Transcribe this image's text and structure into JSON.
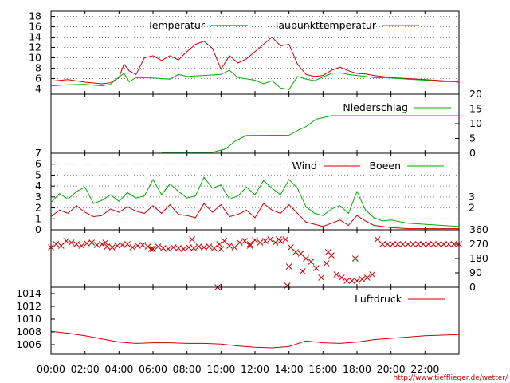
{
  "chart_data": [
    {
      "type": "line",
      "panel": "temperature",
      "ylim": [
        3,
        19
      ],
      "yticks": [
        4,
        6,
        8,
        10,
        12,
        14,
        16,
        18
      ],
      "grid": true,
      "legend_placement": "top",
      "series": [
        {
          "name": "Temperatur",
          "color": "#cc0000",
          "x": [
            0,
            1,
            2,
            3,
            3.5,
            4,
            4.3,
            4.6,
            5,
            5.5,
            6,
            6.5,
            7,
            7.5,
            8,
            8.5,
            9,
            9.5,
            10,
            10.5,
            11,
            11.5,
            12,
            12.5,
            13,
            13.5,
            14,
            14.5,
            15,
            15.5,
            16,
            16.5,
            17,
            17.5,
            18,
            18.5,
            19,
            20,
            21,
            22,
            23,
            24
          ],
          "values": [
            5.5,
            5.8,
            5.3,
            5,
            5.2,
            6.2,
            8.8,
            7.5,
            6.8,
            10,
            10.4,
            9.5,
            10.4,
            9.6,
            11.2,
            12.6,
            13.2,
            11.8,
            7.8,
            10.4,
            9,
            9.8,
            11.2,
            12.6,
            14,
            12.3,
            12.6,
            8.8,
            6.8,
            6.4,
            6.6,
            7.6,
            8.2,
            7.5,
            7,
            6.9,
            6.6,
            6.2,
            6,
            5.8,
            5.6,
            5.3
          ]
        },
        {
          "name": "Taupunkttemperatur",
          "color": "#00aa00",
          "x": [
            0,
            1,
            2,
            3,
            3.5,
            4,
            4.3,
            4.6,
            5,
            6,
            7,
            7.5,
            8,
            9,
            10,
            10.5,
            11,
            12,
            12.5,
            13,
            13.5,
            14,
            14.5,
            15,
            15.5,
            16,
            16.5,
            17,
            17.5,
            18,
            19,
            20,
            21,
            22,
            23,
            24
          ],
          "values": [
            4.6,
            4.8,
            4.9,
            4.6,
            4.9,
            6.3,
            7,
            5.4,
            6.2,
            6.1,
            5.9,
            6.8,
            6.4,
            6.6,
            6.8,
            7.6,
            6.2,
            5.7,
            5,
            5.6,
            4.2,
            3.9,
            6.4,
            5.9,
            5.6,
            6.3,
            7,
            7.1,
            6.8,
            6.6,
            6.2,
            6.1,
            5.9,
            5.7,
            5.4,
            5.4
          ]
        }
      ]
    },
    {
      "type": "line",
      "panel": "precipitation",
      "ylim": [
        0,
        20
      ],
      "yticks": [
        0,
        5,
        10,
        15,
        20
      ],
      "yaxis": "right",
      "series": [
        {
          "name": "Niederschlag",
          "color": "#00aa00",
          "x": [
            6.5,
            9.5,
            10.3,
            10.8,
            11.5,
            14,
            14.6,
            15,
            15.6,
            16,
            16.5,
            24
          ],
          "values": [
            0.3,
            0.3,
            1.5,
            4,
            6,
            6.1,
            8,
            9,
            11.5,
            12,
            12.7,
            12.7
          ]
        }
      ]
    },
    {
      "type": "line",
      "panel": "wind",
      "ylim": [
        0,
        7
      ],
      "yticks": [
        0,
        1,
        2,
        3,
        4,
        5,
        6,
        7
      ],
      "right_tick_labels": [
        "2",
        "3"
      ],
      "grid": true,
      "series": [
        {
          "name": "Wind",
          "color": "#cc0000",
          "x": [
            0,
            0.5,
            1,
            1.5,
            2,
            2.5,
            3,
            3.5,
            4,
            4.5,
            5,
            5.5,
            6,
            6.5,
            7,
            7.5,
            8,
            8.5,
            9,
            9.5,
            10,
            10.5,
            11,
            11.5,
            12,
            12.5,
            13,
            13.5,
            14,
            14.5,
            15,
            15.5,
            16,
            16.5,
            17,
            17.5,
            18,
            18.5,
            19,
            19.5,
            20,
            21,
            22,
            23,
            24
          ],
          "values": [
            1.2,
            1.8,
            1.5,
            2.2,
            1.6,
            1.2,
            1.3,
            1.9,
            1.6,
            2.1,
            1.7,
            1.5,
            2.2,
            1.5,
            2.3,
            1.4,
            1.3,
            1.1,
            2.4,
            1.6,
            2.3,
            1.2,
            1.4,
            1.8,
            1.1,
            2.4,
            1.8,
            1.5,
            2.3,
            1.5,
            0.7,
            0.5,
            0.3,
            0.6,
            0.9,
            0.4,
            1.3,
            0.8,
            0.4,
            0.3,
            0.2,
            0.1,
            0.1,
            0.1,
            0.1
          ]
        },
        {
          "name": "Boeen",
          "color": "#00aa00",
          "x": [
            0,
            0.5,
            1,
            1.5,
            2,
            2.5,
            3,
            3.5,
            4,
            4.5,
            5,
            5.5,
            6,
            6.5,
            7,
            7.5,
            8,
            8.5,
            9,
            9.5,
            10,
            10.5,
            11,
            11.5,
            12,
            12.5,
            13,
            13.5,
            14,
            14.5,
            15,
            15.5,
            16,
            16.5,
            17,
            17.5,
            18,
            18.5,
            19,
            19.5,
            20,
            21,
            22,
            23,
            24
          ],
          "values": [
            2.5,
            3.3,
            2.8,
            3.5,
            3.9,
            2.4,
            2.7,
            3.2,
            2.6,
            3.4,
            2.9,
            3.1,
            4.6,
            3.2,
            4.2,
            3.5,
            2.9,
            3.1,
            4.8,
            3.8,
            4.1,
            2.8,
            3.1,
            3.9,
            3.2,
            4.5,
            3.8,
            3.2,
            4.6,
            3.8,
            2.1,
            1.5,
            1.3,
            1.9,
            2.2,
            1.5,
            3.5,
            1.8,
            1.1,
            0.8,
            0.9,
            0.6,
            0.5,
            0.4,
            0.3
          ]
        }
      ]
    },
    {
      "type": "scatter",
      "panel": "wind-direction",
      "ylim": [
        0,
        360
      ],
      "yticks": [
        0,
        90,
        180,
        270,
        360
      ],
      "yaxis": "right",
      "marker": "x",
      "series": [
        {
          "name": "",
          "color": "#cc0000",
          "x": [
            0,
            0.3,
            0.6,
            0.9,
            1.2,
            1.5,
            1.8,
            2.1,
            2.4,
            2.7,
            3,
            3.3,
            3.6,
            3.9,
            4.2,
            4.5,
            4.8,
            5.1,
            5.4,
            5.7,
            6,
            6.3,
            6.6,
            6.9,
            7.2,
            7.5,
            7.8,
            8.1,
            8.4,
            8.7,
            9,
            9.3,
            9.6,
            9.9,
            10.2,
            10.5,
            10.8,
            11.1,
            11.4,
            11.7,
            12,
            12.3,
            12.6,
            12.9,
            13.2,
            13.5,
            13.8,
            14.1,
            14.4,
            14.7,
            15,
            15.3,
            15.6,
            15.9,
            16.2,
            16.5,
            16.8,
            17.1,
            17.4,
            17.7,
            18,
            18.3,
            18.6,
            18.9,
            19.2,
            19.5,
            19.8,
            20.1,
            20.4,
            20.7,
            21,
            21.3,
            21.6,
            21.9,
            22.2,
            22.5,
            22.8,
            23.1,
            23.4,
            23.7,
            24,
            3.2,
            5.9,
            8.3,
            10,
            11.7,
            13.4,
            14,
            14.8,
            16.3,
            17.9,
            9.8,
            13.9
          ],
          "values": [
            250,
            270,
            260,
            290,
            280,
            270,
            260,
            275,
            280,
            265,
            270,
            255,
            250,
            260,
            265,
            270,
            250,
            260,
            265,
            255,
            240,
            255,
            245,
            240,
            250,
            245,
            240,
            250,
            245,
            255,
            250,
            255,
            245,
            270,
            290,
            260,
            250,
            280,
            290,
            270,
            295,
            280,
            290,
            300,
            280,
            290,
            300,
            250,
            220,
            210,
            180,
            160,
            120,
            60,
            150,
            200,
            80,
            60,
            40,
            40,
            40,
            50,
            60,
            80,
            300,
            270,
            270,
            270,
            270,
            270,
            270,
            270,
            270,
            270,
            270,
            270,
            270,
            270,
            270,
            270,
            270,
            280,
            240,
            300,
            240,
            260,
            300,
            130,
            100,
            220,
            180,
            0,
            10
          ]
        }
      ]
    },
    {
      "type": "line",
      "panel": "pressure",
      "ylim": [
        1004.5,
        1015
      ],
      "yticks": [
        1006,
        1008,
        1010,
        1012,
        1014
      ],
      "legend_placement": "top-right",
      "series": [
        {
          "name": "Luftdruck",
          "color": "#cc0000",
          "x": [
            0,
            1,
            2,
            3,
            4,
            5,
            6,
            7,
            8,
            9,
            10,
            11,
            12,
            13,
            14,
            15,
            16,
            17,
            18,
            19,
            20,
            21,
            22,
            23,
            24
          ],
          "values": [
            1008.1,
            1007.8,
            1007.4,
            1006.9,
            1006.4,
            1006.2,
            1006.3,
            1006.3,
            1006.2,
            1006.2,
            1006.1,
            1005.8,
            1005.6,
            1005.5,
            1005.7,
            1006.6,
            1006.3,
            1006.2,
            1006.4,
            1006.8,
            1007.0,
            1007.2,
            1007.4,
            1007.5,
            1007.6
          ]
        }
      ]
    }
  ],
  "x_axis": {
    "min": 0,
    "max": 24,
    "tick_values": [
      0,
      2,
      4,
      6,
      8,
      10,
      12,
      14,
      16,
      18,
      20,
      22
    ],
    "tick_labels": [
      "00:00",
      "02:00",
      "04:00",
      "06:00",
      "08:00",
      "10:00",
      "12:00",
      "14:00",
      "16:00",
      "18:00",
      "20:00",
      "22:00"
    ]
  },
  "footer": {
    "url": "http://www.tiefflieger.de/wetter/"
  }
}
